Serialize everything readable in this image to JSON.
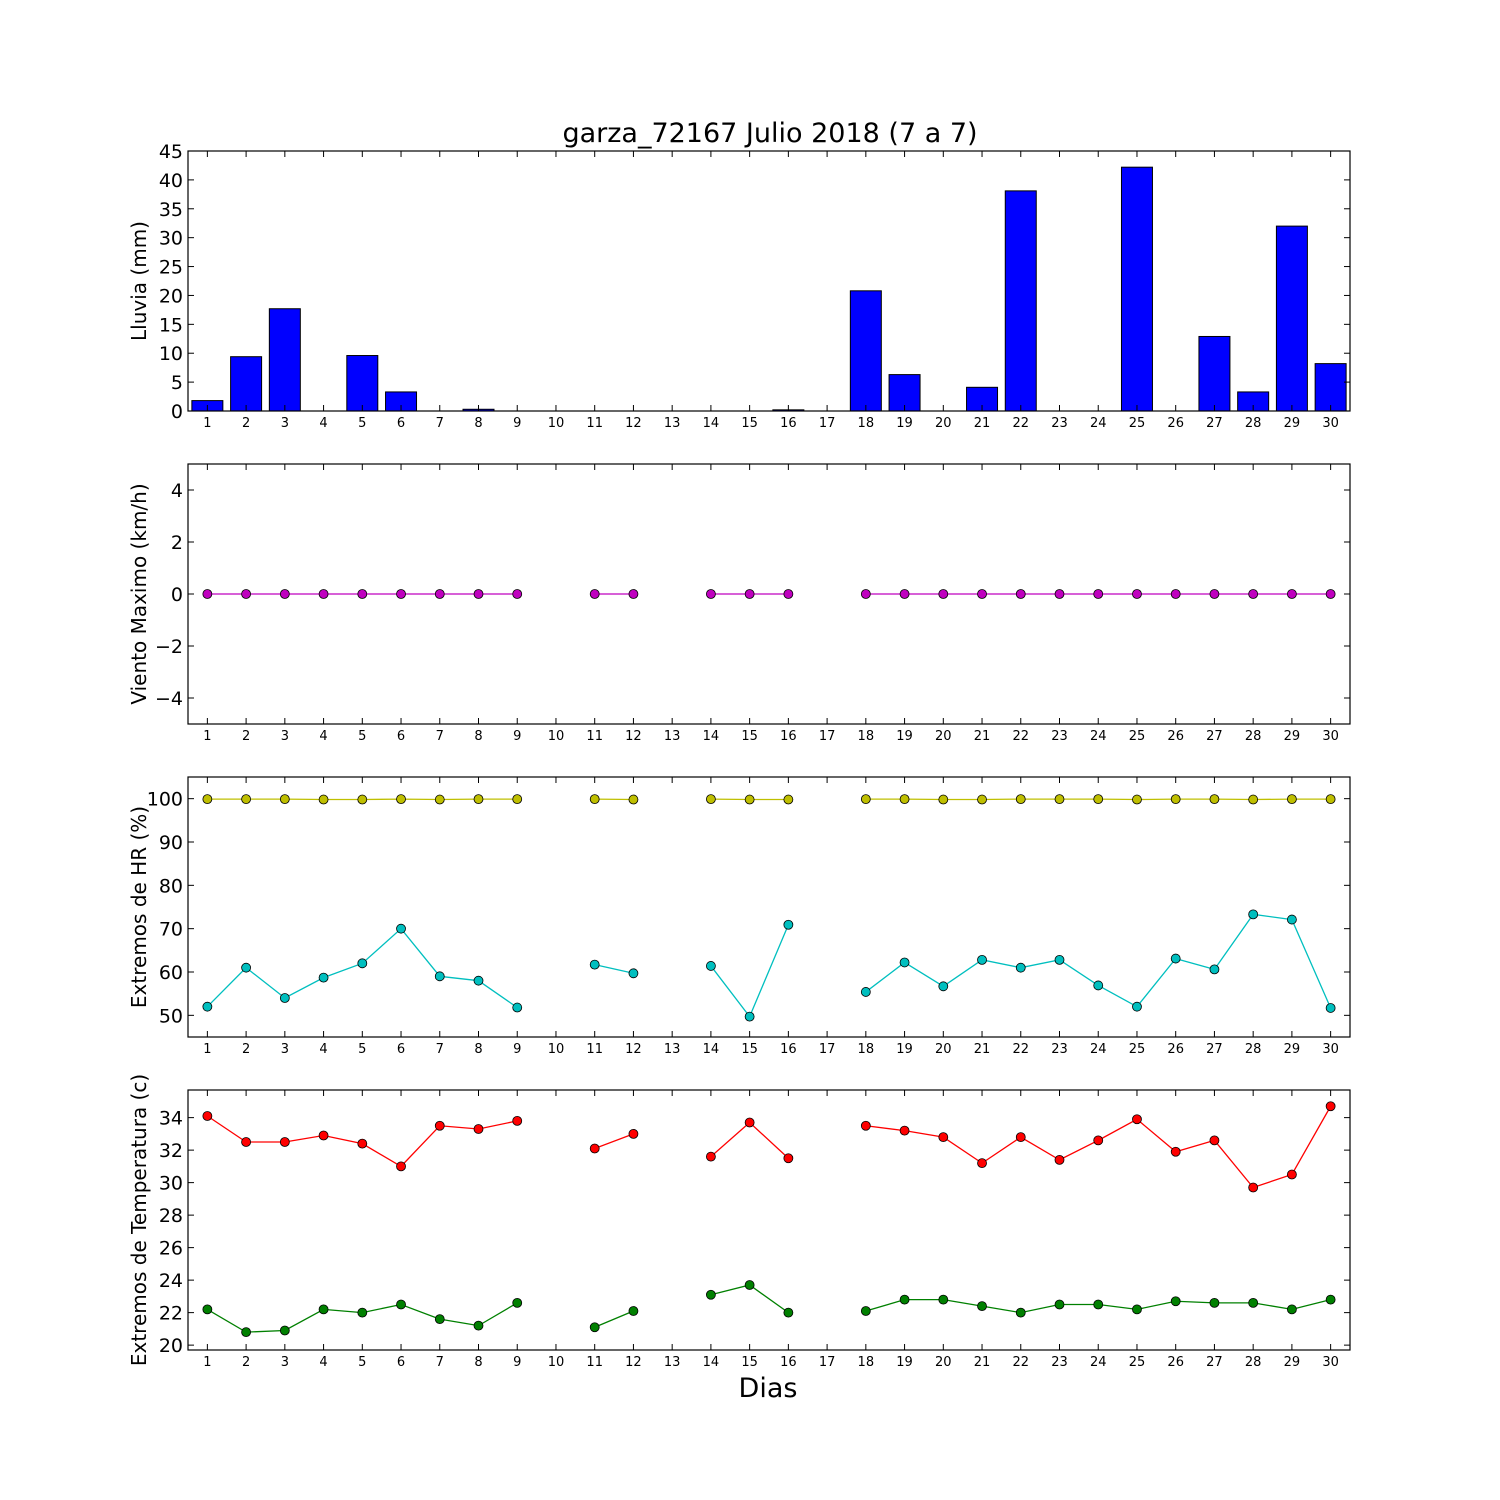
{
  "figure": {
    "title": "garza_72167 Julio 2018  (7 a 7)",
    "xlabel": "Dias"
  },
  "chart_data": [
    {
      "type": "bar",
      "ylabel": "Lluvia (mm)",
      "ylim": [
        0,
        45
      ],
      "yticks": [
        0,
        5,
        10,
        15,
        20,
        25,
        30,
        35,
        40,
        45
      ],
      "categories": [
        1,
        2,
        3,
        4,
        5,
        6,
        7,
        8,
        9,
        10,
        11,
        12,
        13,
        14,
        15,
        16,
        17,
        18,
        19,
        20,
        21,
        22,
        23,
        24,
        25,
        26,
        27,
        28,
        29,
        30
      ],
      "series": [
        {
          "color": "#0000ff",
          "values": [
            1.8,
            9.4,
            17.7,
            0,
            9.6,
            3.3,
            0,
            0.3,
            0,
            0,
            0,
            0,
            0,
            0,
            0,
            0.2,
            0,
            20.8,
            6.3,
            0,
            4.1,
            38.1,
            0,
            0,
            42.2,
            0,
            12.9,
            3.3,
            32.0,
            8.2
          ]
        }
      ]
    },
    {
      "type": "line",
      "ylabel": "Viento Maximo (km/h)",
      "ylim": [
        -5,
        5
      ],
      "yticks": [
        -4,
        -2,
        0,
        2,
        4
      ],
      "x": [
        1,
        2,
        3,
        4,
        5,
        6,
        7,
        8,
        9,
        10,
        11,
        12,
        13,
        14,
        15,
        16,
        17,
        18,
        19,
        20,
        21,
        22,
        23,
        24,
        25,
        26,
        27,
        28,
        29,
        30
      ],
      "series": [
        {
          "color": "#bf00bf",
          "values": [
            0,
            0,
            0,
            0,
            0,
            0,
            0,
            0,
            0,
            null,
            0,
            0,
            null,
            0,
            0,
            0,
            null,
            0,
            0,
            0,
            0,
            0,
            0,
            0,
            0,
            0,
            0,
            0,
            0,
            0
          ]
        }
      ]
    },
    {
      "type": "line",
      "ylabel": "Extremos de HR (%)",
      "ylim": [
        45,
        105
      ],
      "yticks": [
        50,
        60,
        70,
        80,
        90,
        100
      ],
      "x": [
        1,
        2,
        3,
        4,
        5,
        6,
        7,
        8,
        9,
        10,
        11,
        12,
        13,
        14,
        15,
        16,
        17,
        18,
        19,
        20,
        21,
        22,
        23,
        24,
        25,
        26,
        27,
        28,
        29,
        30
      ],
      "series": [
        {
          "color": "#bfbf00",
          "values": [
            99.9,
            99.9,
            99.9,
            99.8,
            99.8,
            99.9,
            99.8,
            99.9,
            99.9,
            null,
            99.9,
            99.8,
            null,
            99.9,
            99.8,
            99.8,
            null,
            99.9,
            99.9,
            99.8,
            99.8,
            99.9,
            99.9,
            99.9,
            99.8,
            99.9,
            99.9,
            99.8,
            99.9,
            99.9
          ]
        },
        {
          "color": "#00bfbf",
          "values": [
            52.0,
            61.0,
            54.0,
            58.7,
            62.0,
            70.0,
            59.0,
            58.0,
            51.8,
            null,
            61.7,
            59.7,
            null,
            61.4,
            49.7,
            70.9,
            null,
            55.4,
            62.2,
            56.7,
            62.8,
            61.0,
            62.8,
            56.9,
            52.0,
            63.1,
            60.6,
            73.3,
            72.1,
            51.7
          ]
        }
      ]
    },
    {
      "type": "line",
      "ylabel": "Extremos de Temperatura (c)",
      "ylim": [
        19.7,
        35.7
      ],
      "yticks": [
        20,
        22,
        24,
        26,
        28,
        30,
        32,
        34
      ],
      "x": [
        1,
        2,
        3,
        4,
        5,
        6,
        7,
        8,
        9,
        10,
        11,
        12,
        13,
        14,
        15,
        16,
        17,
        18,
        19,
        20,
        21,
        22,
        23,
        24,
        25,
        26,
        27,
        28,
        29,
        30
      ],
      "series": [
        {
          "color": "#ff0000",
          "values": [
            34.1,
            32.5,
            32.5,
            32.9,
            32.4,
            31.0,
            33.5,
            33.3,
            33.8,
            null,
            32.1,
            33.0,
            null,
            31.6,
            33.7,
            31.5,
            null,
            33.5,
            33.2,
            32.8,
            31.2,
            32.8,
            31.4,
            32.6,
            33.9,
            31.9,
            32.6,
            29.7,
            30.5,
            34.7
          ]
        },
        {
          "color": "#008000",
          "values": [
            22.2,
            20.8,
            20.9,
            22.2,
            22.0,
            22.5,
            21.6,
            21.2,
            22.6,
            null,
            21.1,
            22.1,
            null,
            23.1,
            23.7,
            22.0,
            null,
            22.1,
            22.8,
            22.8,
            22.4,
            22.0,
            22.5,
            22.5,
            22.2,
            22.7,
            22.6,
            22.6,
            22.2,
            22.8
          ]
        }
      ]
    }
  ]
}
